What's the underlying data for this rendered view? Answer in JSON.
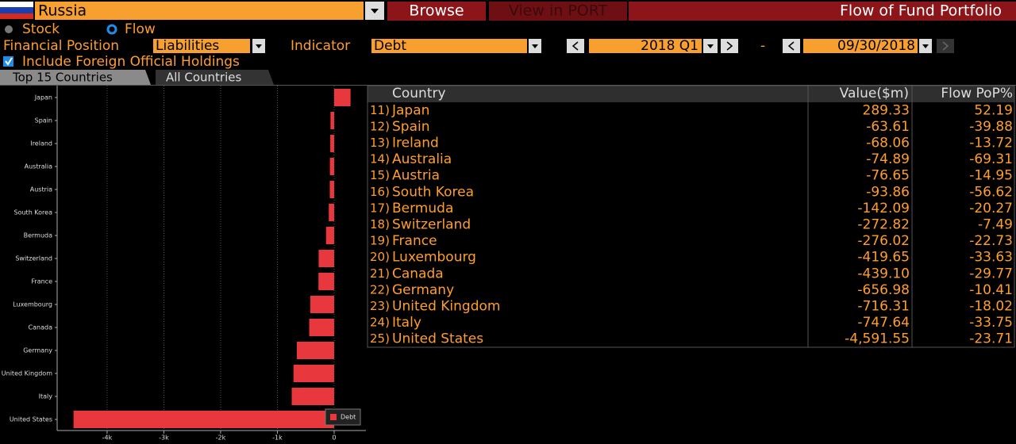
{
  "header": {
    "country": "Russia",
    "browse": "Browse",
    "view": "View in PORT",
    "title": "Flow of Fund Portfolio"
  },
  "controls": {
    "stock": "Stock",
    "flow": "Flow",
    "position_label": "Financial Position",
    "position": "Liabilities",
    "indicator_label": "Indicator",
    "indicator": "Debt",
    "period_start": "2018 Q1",
    "separator": "-",
    "period_end": "09/30/2018",
    "include": "Include Foreign Official Holdings"
  },
  "tabs": [
    "Top 15 Countries",
    "All Countries"
  ],
  "table": {
    "columns": [
      "Country",
      "Value($m)",
      "Flow PoP%"
    ],
    "rows": [
      [
        "11)",
        "Japan",
        "289.33",
        "52.19"
      ],
      [
        "12)",
        "Spain",
        "-63.61",
        "-39.88"
      ],
      [
        "13)",
        "Ireland",
        "-68.06",
        "-13.72"
      ],
      [
        "14)",
        "Australia",
        "-74.89",
        "-69.31"
      ],
      [
        "15)",
        "Austria",
        "-76.65",
        "-14.95"
      ],
      [
        "16)",
        "South Korea",
        "-93.86",
        "-56.62"
      ],
      [
        "17)",
        "Bermuda",
        "-142.09",
        "-20.27"
      ],
      [
        "18)",
        "Switzerland",
        "-272.82",
        "-7.49"
      ],
      [
        "19)",
        "France",
        "-276.02",
        "-22.73"
      ],
      [
        "20)",
        "Luxembourg",
        "-419.65",
        "-33.63"
      ],
      [
        "21)",
        "Canada",
        "-439.10",
        "-29.77"
      ],
      [
        "22)",
        "Germany",
        "-656.98",
        "-10.41"
      ],
      [
        "23)",
        "United Kingdom",
        "-716.31",
        "-18.02"
      ],
      [
        "24)",
        "Italy",
        "-747.64",
        "-33.75"
      ],
      [
        "25)",
        "United States",
        "-4,591.55",
        "-23.71"
      ]
    ]
  },
  "chart_data": {
    "type": "hbar",
    "categories": [
      "Japan",
      "Spain",
      "Ireland",
      "Australia",
      "Austria",
      "South Korea",
      "Bermuda",
      "Switzerland",
      "France",
      "Luxembourg",
      "Canada",
      "Germany",
      "United Kingdom",
      "Italy",
      "United States"
    ],
    "series": [
      {
        "name": "Debt",
        "color": "#e8383d",
        "values": [
          289.33,
          -63.61,
          -68.06,
          -74.89,
          -76.65,
          -93.86,
          -142.09,
          -272.82,
          -276.02,
          -419.65,
          -439.1,
          -656.98,
          -716.31,
          -747.64,
          -4591.55
        ]
      }
    ],
    "xlim": [
      -4880,
      560
    ],
    "xticks": [
      {
        "value": -4000,
        "label": "-4k"
      },
      {
        "value": -3000,
        "label": "-3k"
      },
      {
        "value": -2000,
        "label": "-2k"
      },
      {
        "value": -1000,
        "label": "-1k"
      },
      0
    ],
    "grid": true,
    "legend": "lower-right"
  }
}
